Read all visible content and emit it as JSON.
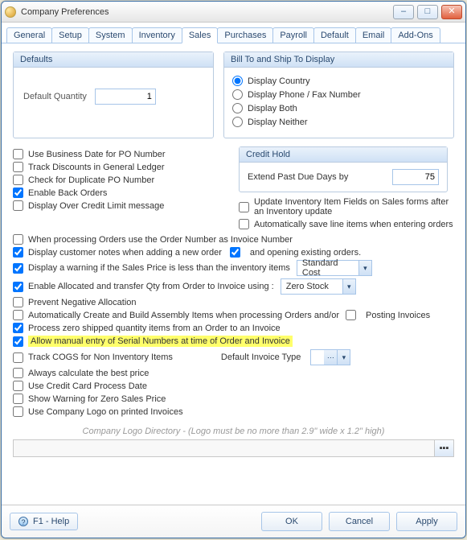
{
  "window": {
    "title": "Company Preferences"
  },
  "tabs": [
    "General",
    "Setup",
    "System",
    "Inventory",
    "Sales",
    "Purchases",
    "Payroll",
    "Default",
    "Email",
    "Add-Ons"
  ],
  "activeTab": 4,
  "groups": {
    "defaults": {
      "title": "Defaults",
      "default_qty_label": "Default Quantity",
      "default_qty_value": "1"
    },
    "billto": {
      "title": "Bill To and Ship To Display",
      "options": [
        "Display Country",
        "Display Phone / Fax Number",
        "Display Both",
        "Display Neither"
      ],
      "selectedIndex": 0
    },
    "credithold": {
      "title": "Credit Hold",
      "extend_label": "Extend Past Due Days by",
      "extend_value": "75"
    }
  },
  "left_checks_1": [
    {
      "label": "Use Business Date for PO Number",
      "checked": false
    },
    {
      "label": "Track Discounts in General Ledger",
      "checked": false
    },
    {
      "label": "Check for Duplicate PO Number",
      "checked": false
    },
    {
      "label": "Enable Back Orders",
      "checked": true
    },
    {
      "label": "Display Over Credit Limit message",
      "checked": false
    }
  ],
  "right_checks_1": [
    {
      "label": "Update Inventory Item Fields on Sales forms after an Inventory update",
      "checked": false
    },
    {
      "label": "Automatically save line items when entering orders",
      "checked": false
    }
  ],
  "full_checks": [
    {
      "label": "When processing Orders use the Order Number as Invoice Number",
      "checked": false,
      "type": "plain"
    },
    {
      "label": "Display customer notes when adding a new order",
      "checked": true,
      "type": "mid",
      "suffix_checked": true,
      "suffix_label": "and opening existing orders."
    },
    {
      "label": "Display a warning if the Sales Price is less than the inventory items",
      "checked": true,
      "type": "combo1",
      "combo_value": "Standard Cost"
    },
    {
      "label": "Enable Allocated and transfer Qty from Order to Invoice using :",
      "checked": true,
      "type": "combo2",
      "combo_value": "Zero Stock"
    },
    {
      "label": "Prevent Negative Allocation",
      "checked": false,
      "type": "plain"
    },
    {
      "label": "Automatically Create and Build Assembly Items when processing Orders and/or",
      "checked": false,
      "type": "suffixchk",
      "suffix_checked": false,
      "suffix_label": "Posting Invoices"
    },
    {
      "label": "Process zero shipped quantity items from an Order to an Invoice",
      "checked": true,
      "type": "plain"
    },
    {
      "label": "Allow manual entry of Serial Numbers at time of Order and Invoice",
      "checked": true,
      "type": "highlight"
    },
    {
      "label": "Track COGS for Non Inventory Items",
      "checked": false,
      "type": "invtype",
      "inv_label": "Default Invoice Type"
    },
    {
      "label": "Always calculate the best price",
      "checked": false,
      "type": "plain"
    },
    {
      "label": "Use Credit Card Process Date",
      "checked": false,
      "type": "plain"
    },
    {
      "label": "Show Warning for Zero Sales Price",
      "checked": false,
      "type": "plain"
    },
    {
      "label": "Use Company Logo on printed Invoices",
      "checked": false,
      "type": "plain"
    }
  ],
  "logo": {
    "hint": "Company Logo Directory - (Logo must be no more than 2.9\" wide x 1.2\" high)"
  },
  "footer": {
    "help": "F1 - Help",
    "ok": "OK",
    "cancel": "Cancel",
    "apply": "Apply"
  }
}
